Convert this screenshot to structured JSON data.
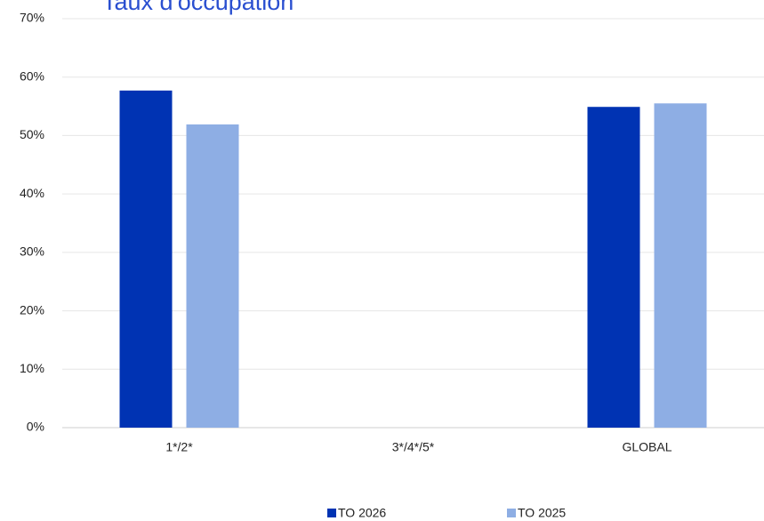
{
  "chart_data": {
    "type": "bar",
    "title": "Taux d'occupation",
    "categories": [
      "1*/2*",
      "3*/4*/5*",
      "GLOBAL"
    ],
    "series": [
      {
        "name": "TO 2026",
        "color": "#0033b3",
        "values": [
          57.7,
          null,
          54.9
        ]
      },
      {
        "name": "TO 2025",
        "color": "#8eaee4",
        "values": [
          51.9,
          null,
          55.5
        ]
      }
    ],
    "ylim": [
      0,
      70
    ],
    "yticks": [
      {
        "value": 0,
        "label": "0%"
      },
      {
        "value": 10,
        "label": "10%"
      },
      {
        "value": 20,
        "label": "20%"
      },
      {
        "value": 30,
        "label": "30%"
      },
      {
        "value": 40,
        "label": "40%"
      },
      {
        "value": 50,
        "label": "50%"
      },
      {
        "value": 60,
        "label": "60%"
      },
      {
        "value": 70,
        "label": "70%"
      }
    ],
    "grid": true,
    "legend": "bottom"
  }
}
